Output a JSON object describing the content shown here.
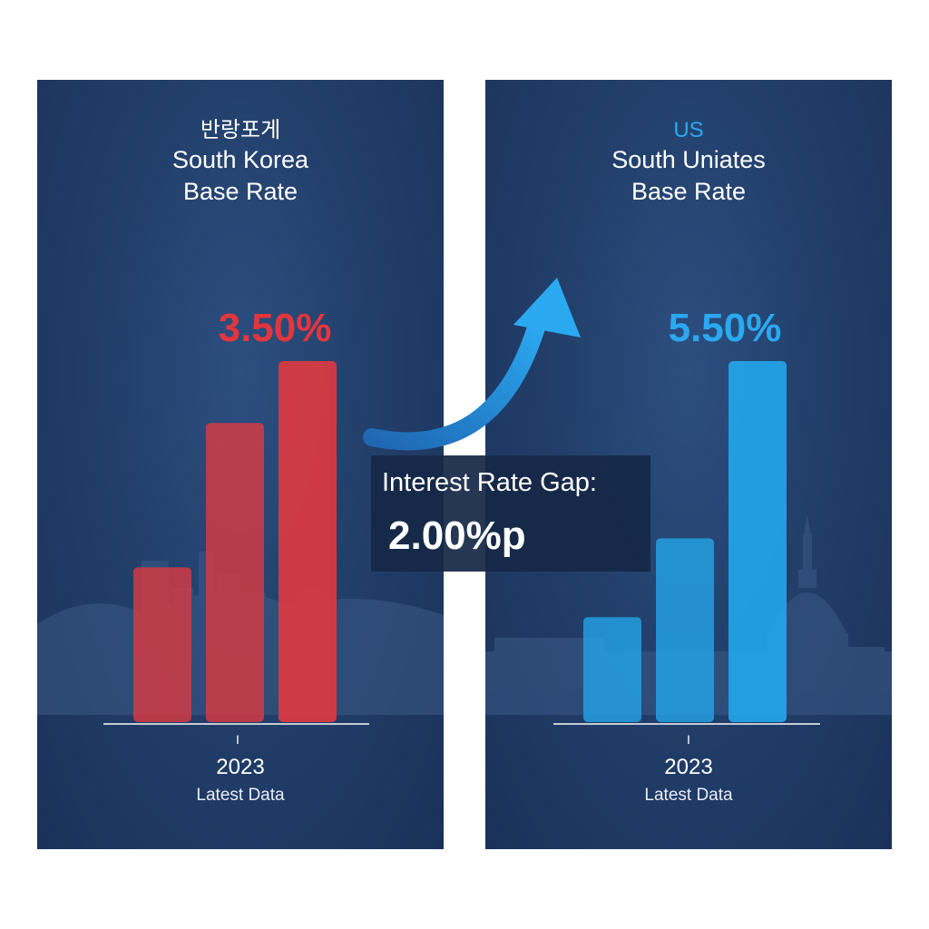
{
  "colors": {
    "korea_bar": "#e03a40",
    "us_bar": "#24a6ec",
    "korea_value": "#e2363c",
    "us_value": "#2aa8f0",
    "us_heading": "#2aa8f0",
    "panel_bg": "#223f6a",
    "axis": "#c3cbd6"
  },
  "icons": {
    "gap_arrow": "curved-up-arrow-icon"
  },
  "gap": {
    "label": "Interest Rate Gap:",
    "value": "2.00%p"
  },
  "chart_data": [
    {
      "type": "bar",
      "heading": "반랑포게",
      "title_line1": "South Korea",
      "title_line2": "Base Rate",
      "categories": [
        "",
        "",
        ""
      ],
      "values": [
        1.5,
        2.9,
        3.5
      ],
      "value_label": "3.50%",
      "xtick": "I",
      "xlabel": "2023",
      "xsublabel": "Latest Data",
      "ylim": [
        0,
        3.5
      ]
    },
    {
      "type": "bar",
      "heading": "US",
      "title_line1": "South Uniates",
      "title_line2": "Base Rate",
      "categories": [
        "",
        "",
        ""
      ],
      "values": [
        1.6,
        2.8,
        5.5
      ],
      "value_label": "5.50%",
      "xtick": "I",
      "xlabel": "2023",
      "xsublabel": "Latest Data",
      "ylim": [
        0,
        5.5
      ]
    }
  ]
}
